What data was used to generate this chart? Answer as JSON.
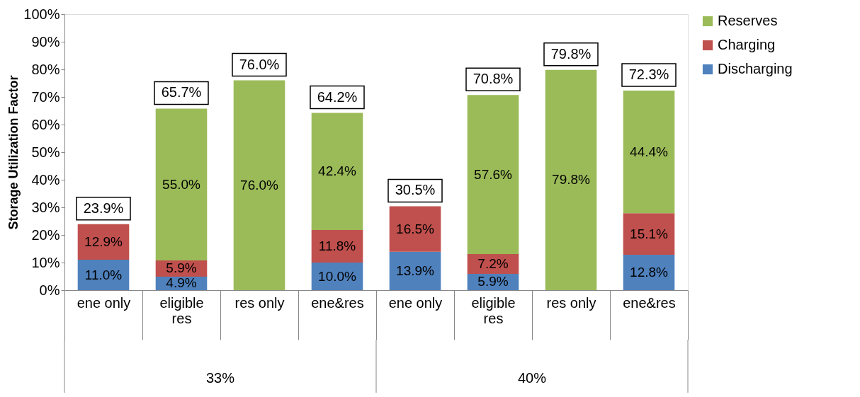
{
  "chart_data": {
    "type": "bar",
    "stacked": true,
    "ylabel": "Storage Utilization Factor",
    "categories": [
      "ene only",
      "eligible res",
      "res only",
      "ene&res",
      "ene only",
      "eligible res",
      "res only",
      "ene&res"
    ],
    "annotations": [
      "33%",
      "40%"
    ],
    "series": [
      {
        "name": "Discharging",
        "color": "#4f81bd",
        "values": [
          11.0,
          4.9,
          null,
          10.0,
          13.9,
          5.9,
          null,
          12.8
        ],
        "value_labels": [
          "11.0%",
          "4.9%",
          null,
          "10.0%",
          "13.9%",
          "5.9%",
          null,
          "12.8%"
        ]
      },
      {
        "name": "Charging",
        "color": "#c0504d",
        "values": [
          12.9,
          5.9,
          null,
          11.8,
          16.5,
          7.2,
          null,
          15.1
        ],
        "value_labels": [
          "12.9%",
          "5.9%",
          null,
          "11.8%",
          "16.5%",
          "7.2%",
          null,
          "15.1%"
        ]
      },
      {
        "name": "Reserves",
        "color": "#9bbb59",
        "values": [
          null,
          55.0,
          76.0,
          42.4,
          null,
          57.6,
          79.8,
          44.4
        ],
        "value_labels": [
          null,
          "55.0%",
          "76.0%",
          "42.4%",
          null,
          "57.6%",
          "79.8%",
          "44.4%"
        ]
      }
    ],
    "totals": [
      "23.9%",
      "65.7%",
      "76.0%",
      "64.2%",
      "30.5%",
      "70.8%",
      "79.8%",
      "72.3%"
    ],
    "ylim": [
      0,
      100
    ],
    "yticks": [
      {
        "value": 0,
        "label": "0%"
      },
      {
        "value": 10,
        "label": "10%"
      },
      {
        "value": 20,
        "label": "20%"
      },
      {
        "value": 30,
        "label": "30%"
      },
      {
        "value": 40,
        "label": "40%"
      },
      {
        "value": 50,
        "label": "50%"
      },
      {
        "value": 60,
        "label": "60%"
      },
      {
        "value": 70,
        "label": "70%"
      },
      {
        "value": 80,
        "label": "80%"
      },
      {
        "value": 90,
        "label": "90%"
      },
      {
        "value": 100,
        "label": "100%"
      }
    ],
    "grid": false,
    "legend": "right"
  }
}
